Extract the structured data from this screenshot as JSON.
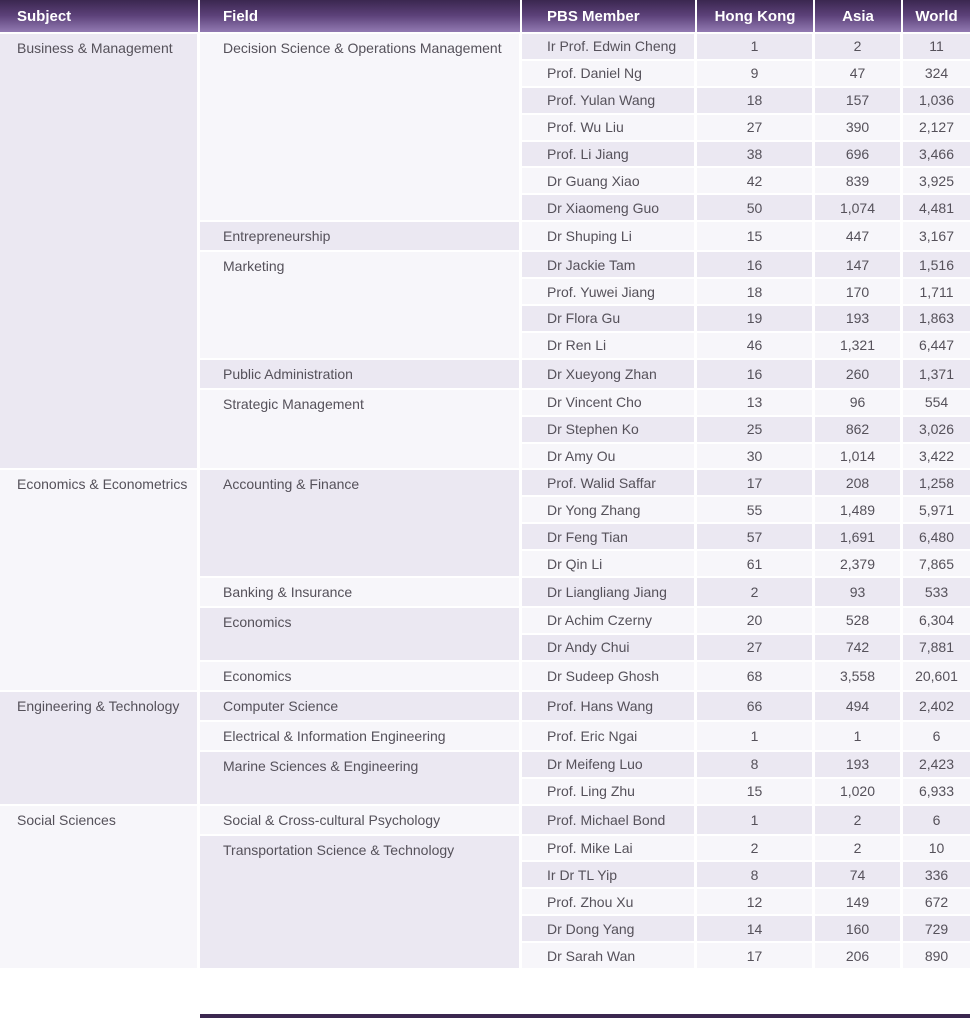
{
  "table": {
    "colors": {
      "hdr-top": "#3b2750",
      "hdr-mid": "#5c4179",
      "hdr-bot": "#927ab2",
      "lav": "#ebe8f2",
      "light": "#f7f6fa",
      "sep": "#ffffff",
      "txt": "#55515a",
      "hdr-txt": "#ffffff"
    },
    "columns": [
      {
        "key": "subject",
        "label": "Subject",
        "align": "left"
      },
      {
        "key": "field",
        "label": "Field",
        "align": "left"
      },
      {
        "key": "member",
        "label": "PBS Member",
        "align": "left"
      },
      {
        "key": "hong_kong",
        "label": "Hong Kong",
        "align": "center"
      },
      {
        "key": "asia",
        "label": "Asia",
        "align": "center"
      },
      {
        "key": "world",
        "label": "World",
        "align": "center"
      }
    ],
    "groups": [
      {
        "subject": "Business & Management",
        "fields": [
          {
            "field": "Decision Science & Operations Management",
            "members": [
              {
                "member": "Ir Prof. Edwin Cheng",
                "hong_kong": "1",
                "asia": "2",
                "world": "11"
              },
              {
                "member": "Prof. Daniel Ng",
                "hong_kong": "9",
                "asia": "47",
                "world": "324"
              },
              {
                "member": "Prof. Yulan Wang",
                "hong_kong": "18",
                "asia": "157",
                "world": "1,036"
              },
              {
                "member": "Prof. Wu Liu",
                "hong_kong": "27",
                "asia": "390",
                "world": "2,127"
              },
              {
                "member": "Prof. Li Jiang",
                "hong_kong": "38",
                "asia": "696",
                "world": "3,466"
              },
              {
                "member": "Dr Guang Xiao",
                "hong_kong": "42",
                "asia": "839",
                "world": "3,925"
              },
              {
                "member": "Dr Xiaomeng Guo",
                "hong_kong": "50",
                "asia": "1,074",
                "world": "4,481"
              }
            ]
          },
          {
            "field": "Entrepreneurship",
            "members": [
              {
                "member": "Dr Shuping Li",
                "hong_kong": "15",
                "asia": "447",
                "world": "3,167"
              }
            ]
          },
          {
            "field": "Marketing",
            "members": [
              {
                "member": "Dr Jackie Tam",
                "hong_kong": "16",
                "asia": "147",
                "world": "1,516"
              },
              {
                "member": "Prof. Yuwei Jiang",
                "hong_kong": "18",
                "asia": "170",
                "world": "1,711"
              },
              {
                "member": "Dr Flora Gu",
                "hong_kong": "19",
                "asia": "193",
                "world": "1,863"
              },
              {
                "member": "Dr Ren Li",
                "hong_kong": "46",
                "asia": "1,321",
                "world": "6,447"
              }
            ]
          },
          {
            "field": "Public Administration",
            "members": [
              {
                "member": "Dr Xueyong Zhan",
                "hong_kong": "16",
                "asia": "260",
                "world": "1,371"
              }
            ]
          },
          {
            "field": "Strategic Management",
            "members": [
              {
                "member": "Dr Vincent Cho",
                "hong_kong": "13",
                "asia": "96",
                "world": "554"
              },
              {
                "member": "Dr Stephen Ko",
                "hong_kong": "25",
                "asia": "862",
                "world": "3,026"
              },
              {
                "member": "Dr Amy Ou",
                "hong_kong": "30",
                "asia": "1,014",
                "world": "3,422"
              }
            ]
          }
        ]
      },
      {
        "subject": "Economics & Econometrics",
        "fields": [
          {
            "field": "Accounting & Finance",
            "members": [
              {
                "member": "Prof. Walid Saffar",
                "hong_kong": "17",
                "asia": "208",
                "world": "1,258"
              },
              {
                "member": "Dr Yong Zhang",
                "hong_kong": "55",
                "asia": "1,489",
                "world": "5,971"
              },
              {
                "member": "Dr Feng Tian",
                "hong_kong": "57",
                "asia": "1,691",
                "world": "6,480"
              },
              {
                "member": "Dr Qin Li",
                "hong_kong": "61",
                "asia": "2,379",
                "world": "7,865"
              }
            ]
          },
          {
            "field": "Banking & Insurance",
            "members": [
              {
                "member": "Dr Liangliang Jiang",
                "hong_kong": "2",
                "asia": "93",
                "world": "533"
              }
            ]
          },
          {
            "field": "Economics",
            "members": [
              {
                "member": "Dr Achim Czerny",
                "hong_kong": "20",
                "asia": "528",
                "world": "6,304"
              },
              {
                "member": "Dr Andy Chui",
                "hong_kong": "27",
                "asia": "742",
                "world": "7,881"
              }
            ]
          },
          {
            "field": "Economics",
            "members": [
              {
                "member": "Dr Sudeep Ghosh",
                "hong_kong": "68",
                "asia": "3,558",
                "world": "20,601"
              }
            ]
          }
        ]
      },
      {
        "subject": "Engineering & Technology",
        "fields": [
          {
            "field": "Computer Science",
            "members": [
              {
                "member": "Prof. Hans Wang",
                "hong_kong": "66",
                "asia": "494",
                "world": "2,402"
              }
            ]
          },
          {
            "field": "Electrical & Information Engineering",
            "members": [
              {
                "member": "Prof. Eric Ngai",
                "hong_kong": "1",
                "asia": "1",
                "world": "6"
              }
            ]
          },
          {
            "field": "Marine Sciences & Engineering",
            "members": [
              {
                "member": "Dr Meifeng Luo",
                "hong_kong": "8",
                "asia": "193",
                "world": "2,423"
              },
              {
                "member": "Prof. Ling Zhu",
                "hong_kong": "15",
                "asia": "1,020",
                "world": "6,933"
              }
            ]
          }
        ]
      },
      {
        "subject": "Social Sciences",
        "fields": [
          {
            "field": "Social & Cross-cultural Psychology",
            "members": [
              {
                "member": "Prof. Michael Bond",
                "hong_kong": "1",
                "asia": "2",
                "world": "6"
              }
            ]
          },
          {
            "field": "Transportation Science & Technology",
            "members": [
              {
                "member": "Prof. Mike Lai",
                "hong_kong": "2",
                "asia": "2",
                "world": "10"
              },
              {
                "member": "Ir Dr TL Yip",
                "hong_kong": "8",
                "asia": "74",
                "world": "336"
              },
              {
                "member": "Prof. Zhou Xu",
                "hong_kong": "12",
                "asia": "149",
                "world": "672"
              },
              {
                "member": "Dr Dong Yang",
                "hong_kong": "14",
                "asia": "160",
                "world": "729"
              },
              {
                "member": "Dr Sarah Wan",
                "hong_kong": "17",
                "asia": "206",
                "world": "890"
              }
            ]
          }
        ]
      }
    ]
  }
}
